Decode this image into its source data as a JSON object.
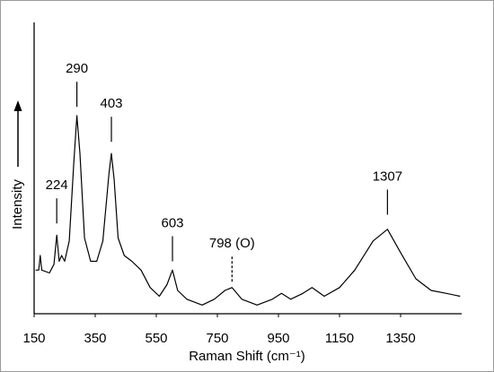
{
  "chart_data": {
    "type": "line",
    "xlabel": "Raman Shift (cm⁻¹)",
    "ylabel": "Intensity",
    "x": [
      155,
      165,
      170,
      175,
      200,
      215,
      224,
      232,
      240,
      250,
      265,
      280,
      290,
      300,
      315,
      335,
      355,
      375,
      395,
      403,
      412,
      425,
      445,
      470,
      500,
      530,
      560,
      585,
      603,
      620,
      650,
      700,
      740,
      775,
      798,
      830,
      880,
      930,
      960,
      990,
      1030,
      1060,
      1100,
      1150,
      1200,
      1260,
      1307,
      1350,
      1400,
      1450,
      1500,
      1545
    ],
    "values": [
      15,
      15,
      20,
      15,
      14,
      17,
      27,
      18,
      20,
      18,
      25,
      52,
      68,
      55,
      26,
      18,
      18,
      25,
      48,
      55,
      46,
      26,
      20,
      18,
      15,
      9,
      6,
      10,
      15,
      8,
      5,
      3,
      5,
      8,
      9,
      5,
      3,
      5,
      7,
      5,
      7,
      9,
      6,
      9,
      15,
      25,
      29,
      21,
      12,
      8,
      7,
      6
    ],
    "color": "#000000",
    "xlim": [
      150,
      1550
    ],
    "ylim": [
      0,
      100
    ],
    "xticks": [
      150,
      350,
      550,
      750,
      950,
      1150,
      1350
    ],
    "annotations": [
      {
        "text": "224",
        "x": 224,
        "y": 31,
        "dashed": false
      },
      {
        "text": "290",
        "x": 290,
        "y": 71,
        "dashed": false
      },
      {
        "text": "403",
        "x": 403,
        "y": 59,
        "dashed": false
      },
      {
        "text": "603",
        "x": 603,
        "y": 18,
        "dashed": false
      },
      {
        "text": "798 (O)",
        "x": 798,
        "y": 11,
        "dashed": true
      },
      {
        "text": "1307",
        "x": 1307,
        "y": 34,
        "dashed": false
      }
    ]
  }
}
